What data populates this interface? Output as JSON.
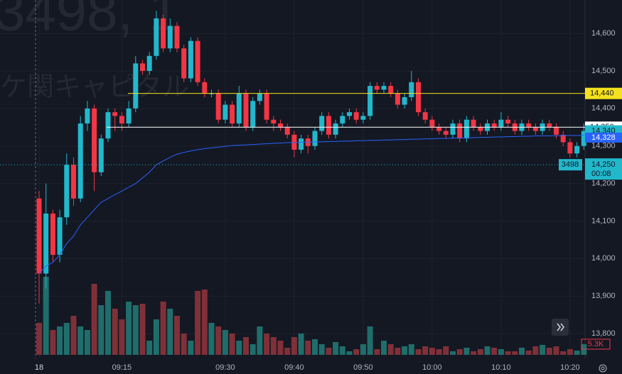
{
  "chart_data": {
    "type": "candlestick",
    "watermark": {
      "symbol": "3498, 1",
      "name": "ケ関キャピタル"
    },
    "categories": [
      "18",
      null,
      null,
      null,
      null,
      null,
      null,
      null,
      null,
      null,
      null,
      null,
      "09:15",
      null,
      null,
      null,
      null,
      null,
      null,
      null,
      null,
      null,
      null,
      null,
      null,
      null,
      null,
      "09:30",
      null,
      null,
      null,
      null,
      null,
      null,
      null,
      null,
      null,
      "09:40",
      null,
      null,
      null,
      null,
      null,
      null,
      null,
      null,
      null,
      "09:50",
      null,
      null,
      null,
      null,
      null,
      null,
      null,
      null,
      null,
      "10:00",
      null,
      null,
      null,
      null,
      null,
      null,
      null,
      null,
      null,
      "10:10",
      null,
      null,
      null,
      null,
      null,
      null,
      null,
      null,
      null,
      "10:20",
      null,
      null
    ],
    "open": [
      14160,
      13960,
      14120,
      14010,
      14110,
      14250,
      14160,
      14360,
      14400,
      14230,
      14320,
      14390,
      14380,
      14360,
      14400,
      14520,
      14500,
      14540,
      14640,
      14560,
      14620,
      14560,
      14480,
      14580,
      14470,
      14440,
      14440,
      14370,
      14410,
      14360,
      14440,
      14350,
      14420,
      14440,
      14370,
      14360,
      14350,
      14330,
      14290,
      14320,
      14300,
      14340,
      14380,
      14330,
      14360,
      14380,
      14390,
      14370,
      14380,
      14460,
      14450,
      14460,
      14440,
      14410,
      14430,
      14470,
      14390,
      14370,
      14350,
      14340,
      14330,
      14360,
      14320,
      14370,
      14350,
      14340,
      14360,
      14350,
      14370,
      14360,
      14340,
      14360,
      14350,
      14340,
      14360,
      14350,
      14330,
      14310,
      14280,
      14300
    ],
    "high": [
      14180,
      14200,
      14130,
      14130,
      14280,
      14270,
      14380,
      14420,
      14410,
      14330,
      14400,
      14400,
      14390,
      14420,
      14540,
      14530,
      14550,
      14660,
      14650,
      14640,
      14630,
      14570,
      14590,
      14590,
      14480,
      14450,
      14450,
      14420,
      14420,
      14460,
      14450,
      14430,
      14450,
      14450,
      14380,
      14370,
      14360,
      14340,
      14330,
      14330,
      14350,
      14390,
      14390,
      14370,
      14390,
      14400,
      14400,
      14390,
      14470,
      14470,
      14470,
      14470,
      14450,
      14440,
      14500,
      14480,
      14400,
      14380,
      14360,
      14350,
      14370,
      14370,
      14380,
      14380,
      14360,
      14370,
      14370,
      14390,
      14380,
      14370,
      14370,
      14370,
      14360,
      14370,
      14370,
      14360,
      14340,
      14320,
      14310,
      14360
    ],
    "low": [
      13880,
      13920,
      13990,
      13990,
      14090,
      14140,
      14150,
      14340,
      14180,
      14220,
      14310,
      14340,
      14340,
      14350,
      14390,
      14490,
      14490,
      14530,
      14550,
      14550,
      14550,
      14470,
      14470,
      14460,
      14430,
      14430,
      14360,
      14360,
      14350,
      14350,
      14340,
      14340,
      14410,
      14360,
      14340,
      14340,
      14320,
      14270,
      14280,
      14280,
      14290,
      14330,
      14320,
      14320,
      14350,
      14370,
      14360,
      14360,
      14370,
      14440,
      14440,
      14430,
      14400,
      14400,
      14420,
      14380,
      14360,
      14340,
      14330,
      14320,
      14320,
      14310,
      14310,
      14340,
      14330,
      14330,
      14340,
      14340,
      14350,
      14330,
      14330,
      14340,
      14330,
      14330,
      14340,
      14320,
      14300,
      14270,
      14270,
      14290
    ],
    "close": [
      13960,
      14120,
      14010,
      14110,
      14250,
      14160,
      14360,
      14400,
      14230,
      14320,
      14390,
      14380,
      14360,
      14400,
      14520,
      14500,
      14540,
      14640,
      14560,
      14620,
      14560,
      14480,
      14580,
      14470,
      14440,
      14440,
      14370,
      14410,
      14360,
      14440,
      14350,
      14420,
      14440,
      14370,
      14360,
      14350,
      14330,
      14290,
      14320,
      14300,
      14340,
      14380,
      14330,
      14360,
      14380,
      14390,
      14370,
      14380,
      14460,
      14450,
      14460,
      14440,
      14410,
      14430,
      14470,
      14390,
      14370,
      14350,
      14340,
      14330,
      14360,
      14320,
      14370,
      14350,
      14340,
      14360,
      14350,
      14370,
      14360,
      14340,
      14360,
      14350,
      14340,
      14360,
      14350,
      14330,
      14310,
      14280,
      14300,
      14340
    ],
    "volume": [
      15750,
      38500,
      12250,
      14000,
      15750,
      19250,
      14000,
      12250,
      35000,
      24500,
      31500,
      22750,
      17500,
      26250,
      24500,
      25200,
      7000,
      17500,
      26250,
      22750,
      19250,
      10500,
      7000,
      31500,
      32200,
      15750,
      14000,
      12250,
      10500,
      7000,
      8750,
      5250,
      14000,
      10500,
      8750,
      7000,
      3500,
      8750,
      10500,
      7000,
      7700,
      5250,
      3500,
      6300,
      4200,
      1750,
      2800,
      5250,
      14000,
      2800,
      7000,
      5250,
      3500,
      4200,
      5250,
      2800,
      4200,
      3500,
      2800,
      4200,
      1750,
      2800,
      3500,
      1750,
      2800,
      4200,
      3500,
      2800,
      1750,
      1750,
      3500,
      2100,
      4200,
      4900,
      3500,
      4200,
      1750,
      2800,
      2100,
      5300
    ],
    "volume_last_label": "5.3K",
    "vwap": [
      13960,
      13980,
      13990,
      14010,
      14040,
      14060,
      14090,
      14110,
      14130,
      14150,
      14160,
      14170,
      14180,
      14190,
      14200,
      14215,
      14230,
      14250,
      14260,
      14270,
      14278,
      14283,
      14287,
      14290,
      14293,
      14295,
      14297,
      14299,
      14301,
      14302,
      14303,
      14304,
      14305,
      14306,
      14307,
      14308,
      14309,
      14309,
      14310,
      14310,
      14311,
      14311,
      14312,
      14312,
      14313,
      14313,
      14314,
      14314,
      14315,
      14315,
      14316,
      14316,
      14317,
      14317,
      14318,
      14318,
      14319,
      14319,
      14320,
      14320,
      14321,
      14321,
      14322,
      14322,
      14323,
      14323,
      14324,
      14324,
      14325,
      14325,
      14326,
      14326,
      14327,
      14327,
      14327,
      14327,
      14328,
      14328,
      14328,
      14328
    ],
    "vwap_color": "#2962ff",
    "vwap_last": {
      "value": 14328,
      "label": "14,328"
    },
    "up_color": "#22b8cc",
    "down_color": "#f23645",
    "up_volume_color": "#1f6e6b",
    "down_volume_color": "#803038",
    "price_lines": [
      {
        "value": 14440,
        "label": "14,440",
        "color": "#f5e21e"
      },
      {
        "value": 14350,
        "label": "14,350",
        "color": "#ffffff"
      }
    ],
    "last_price": {
      "value": 14340,
      "label": "14,340",
      "color": "#22b8cc"
    },
    "crosshair": {
      "value": 14250,
      "label": "14,250",
      "symbol": "3498",
      "countdown": "00:08"
    },
    "ylim": [
      13734,
      14689
    ],
    "yticks": [
      {
        "value": 13800,
        "label": "13,800"
      },
      {
        "value": 13900,
        "label": "13,900"
      },
      {
        "value": 14000,
        "label": "14,000"
      },
      {
        "value": 14100,
        "label": "14,100"
      },
      {
        "value": 14200,
        "label": "14,200"
      },
      {
        "value": 14300,
        "label": "14,300"
      },
      {
        "value": 14400,
        "label": "14,400"
      },
      {
        "value": 14500,
        "label": "14,500"
      },
      {
        "value": 14600,
        "label": "14,600"
      }
    ],
    "grid": true
  }
}
